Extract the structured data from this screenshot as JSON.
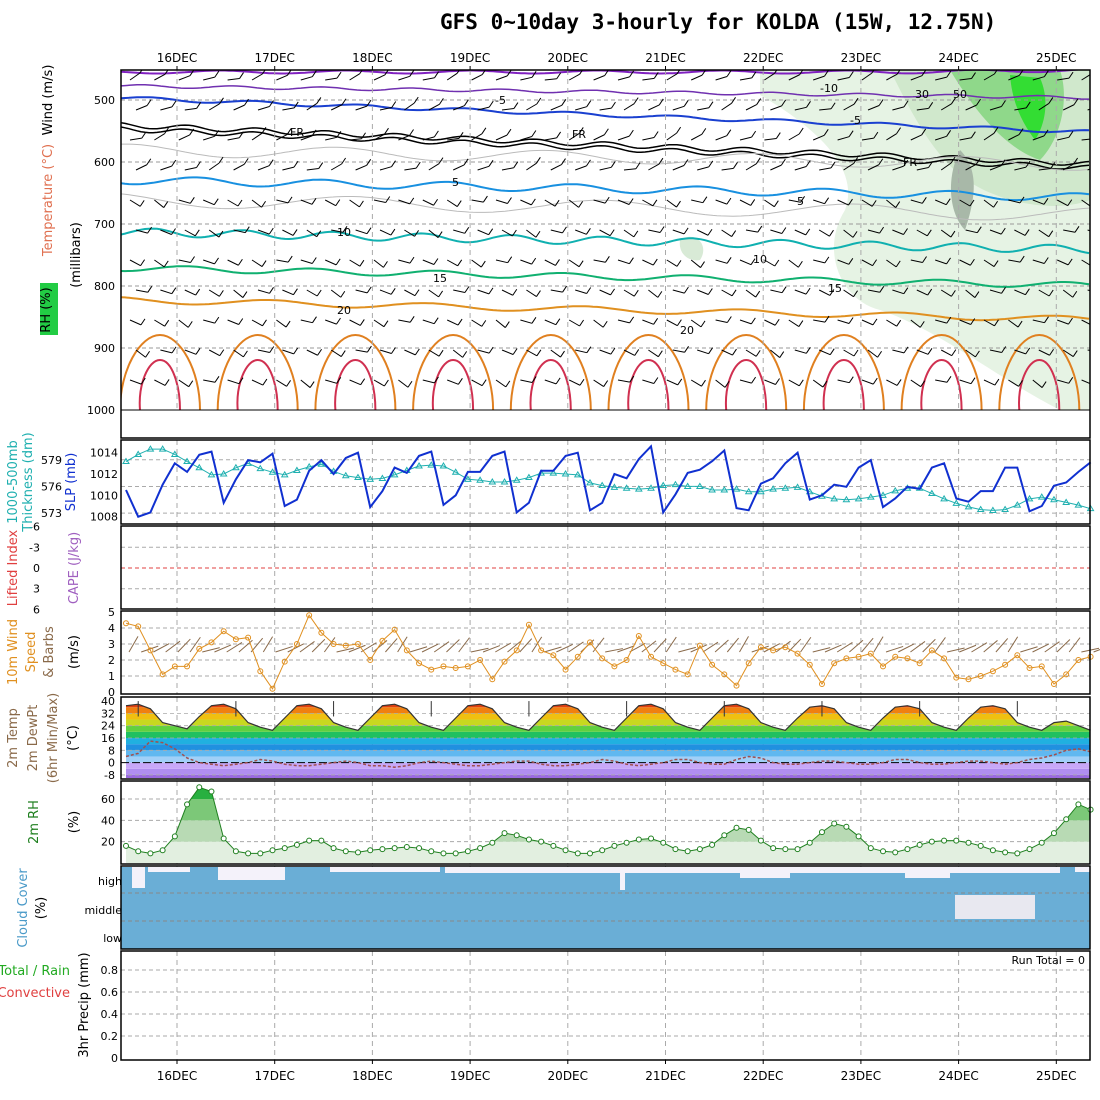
{
  "title": "GFS 0~10day 3-hourly for KOLDA (15W, 12.75N)",
  "dates": [
    "16DEC",
    "17DEC",
    "18DEC",
    "19DEC",
    "20DEC",
    "21DEC",
    "22DEC",
    "23DEC",
    "24DEC",
    "25DEC"
  ],
  "colors": {
    "frame": "#000000",
    "grid": "#aaaaaa",
    "slp": "#1030d0",
    "thickness": "#20b0b0",
    "wind10": "#e09020",
    "rh": "#208020",
    "cloud": "#6aaed6",
    "lifted": "#e04040",
    "temp_warm": "#d02010"
  },
  "panels": {
    "upper": {
      "ylabels": [
        "Wind (m/s)",
        "Temperature (°C)",
        "RH (%)",
        "(millibars)"
      ],
      "ticks": [
        "500",
        "600",
        "700",
        "800",
        "900",
        "1000"
      ],
      "contour_labels": {
        "purple": "-10",
        "blue": "-5",
        "fr": "FR",
        "lblue": "5",
        "teal": "10",
        "green": "15",
        "orange": "20",
        "rh30": "30",
        "rh50": "50"
      }
    },
    "slp": {
      "ylabels": [
        "1000-500mb",
        "Thickness (dm)",
        "SLP (mb)"
      ],
      "left_ticks": [
        "579",
        "576",
        "573"
      ],
      "right_ticks": [
        "1014",
        "1012",
        "1010",
        "1008"
      ]
    },
    "cape": {
      "ylabels": [
        "Lifted Index",
        "CAPE (J/kg)"
      ],
      "ticks": [
        "-6",
        "-3",
        "0",
        "3",
        "6"
      ]
    },
    "wind10": {
      "ylabels": [
        "10m Wind",
        "Speed",
        "& Barbs",
        "(m/s)"
      ],
      "ticks": [
        "5",
        "4",
        "3",
        "2",
        "1",
        "0"
      ]
    },
    "temp": {
      "ylabels": [
        "2m Temp",
        "2m DewPt",
        "(6hr Min/Max)",
        "(°C)"
      ],
      "ticks": [
        "40",
        "32",
        "24",
        "16",
        "8",
        "0",
        "-8"
      ]
    },
    "rh": {
      "ylabels": [
        "2m RH",
        "(%)"
      ],
      "ticks": [
        "60",
        "40",
        "20"
      ]
    },
    "cloud": {
      "ylabels": [
        "Cloud Cover",
        "(%)"
      ],
      "ticks": [
        "high",
        "middle",
        "low"
      ]
    },
    "precip": {
      "ylabels": [
        "Total / Rain",
        "Convective",
        "3hr Precip (mm)"
      ],
      "ticks": [
        "0.8",
        "0.6",
        "0.4",
        "0.2",
        "0"
      ],
      "run_total": "Run Total = 0"
    }
  },
  "chart_data": [
    {
      "panel": "SLP (mb)",
      "type": "line",
      "ylim": [
        1007.5,
        1015
      ],
      "values": [
        1010.5,
        1008.0,
        1008.4,
        1011.0,
        1013.0,
        1012.2,
        1013.8,
        1014.1,
        1009.3,
        1011.5,
        1013.3,
        1013.1,
        1013.9,
        1009.0,
        1009.6,
        1012.3,
        1013.3,
        1012.0,
        1013.5,
        1014.0,
        1008.9,
        1010.4,
        1012.6,
        1012.1,
        1013.7,
        1014.1,
        1009.1,
        1010.0,
        1012.2,
        1012.2,
        1013.7,
        1014.1,
        1008.4,
        1009.3,
        1012.3,
        1012.3,
        1013.7,
        1014.0,
        1008.6,
        1009.3,
        1012.0,
        1011.6,
        1013.4,
        1014.6,
        1008.4,
        1010.1,
        1012.1,
        1012.4,
        1013.2,
        1014.2,
        1008.8,
        1008.6,
        1011.1,
        1011.6,
        1013.0,
        1014.0,
        1009.6,
        1010.0,
        1011.0,
        1010.8,
        1012.6,
        1013.3,
        1008.9,
        1009.7,
        1010.8,
        1010.6,
        1012.6,
        1013.0,
        1009.7,
        1009.4,
        1010.4,
        1010.4,
        1012.6,
        1012.6,
        1008.5,
        1009.0,
        1010.9,
        1011.2,
        1012.2,
        1013.1
      ]
    },
    {
      "panel": "1000-500mb Thickness (dm)",
      "type": "line",
      "ylim": [
        572,
        581
      ],
      "values": [
        578.8,
        579.6,
        580.2,
        580.2,
        579.6,
        578.8,
        578.1,
        577.3,
        577.4,
        578.1,
        578.6,
        578.0,
        577.6,
        577.3,
        577.8,
        578.2,
        578.5,
        577.7,
        577.2,
        577.0,
        576.8,
        576.9,
        577.3,
        577.8,
        578.3,
        578.4,
        578.3,
        577.6,
        576.8,
        576.7,
        576.5,
        576.5,
        576.7,
        577.0,
        577.5,
        577.5,
        577.4,
        577.3,
        576.4,
        576.1,
        575.9,
        575.8,
        575.7,
        575.8,
        576.1,
        576.2,
        576.0,
        576.0,
        575.6,
        575.6,
        575.7,
        575.4,
        575.4,
        575.7,
        575.8,
        575.9,
        575.4,
        574.9,
        574.6,
        574.5,
        574.6,
        574.8,
        575.0,
        575.5,
        575.8,
        575.8,
        575.2,
        574.6,
        574.1,
        573.7,
        573.4,
        573.3,
        573.4,
        573.9,
        574.6,
        574.8,
        574.5,
        574.2,
        573.9,
        573.5
      ]
    },
    {
      "panel": "10m Wind Speed (m/s)",
      "type": "line",
      "ylim": [
        0,
        5
      ],
      "values": [
        4.3,
        4.1,
        2.6,
        1.1,
        1.6,
        1.6,
        2.7,
        3.1,
        3.8,
        3.3,
        3.4,
        1.3,
        0.2,
        1.9,
        3.0,
        4.8,
        3.7,
        3.0,
        2.9,
        3.0,
        2.0,
        3.2,
        3.9,
        2.6,
        1.8,
        1.4,
        1.6,
        1.5,
        1.6,
        2.0,
        0.8,
        1.9,
        2.6,
        4.2,
        2.6,
        2.3,
        1.4,
        2.2,
        3.1,
        2.1,
        1.6,
        2.0,
        3.5,
        2.2,
        1.8,
        1.4,
        1.1,
        2.9,
        1.7,
        1.1,
        0.4,
        1.8,
        2.8,
        2.6,
        2.8,
        2.4,
        1.7,
        0.5,
        1.8,
        2.1,
        2.2,
        2.4,
        1.6,
        2.2,
        2.1,
        1.8,
        2.6,
        2.1,
        0.9,
        0.8,
        1.0,
        1.3,
        1.7,
        2.3,
        1.5,
        1.6,
        0.5,
        1.1,
        2.0,
        2.2
      ]
    },
    {
      "panel": "2m Temp (°C)",
      "type": "area",
      "ylim": [
        -10,
        42
      ],
      "values": [
        37,
        38,
        35,
        26,
        24,
        22,
        30,
        37,
        38,
        35,
        26,
        23,
        21,
        29,
        37,
        38,
        35,
        26,
        23,
        21,
        29,
        37,
        38,
        35,
        26,
        23,
        21,
        29,
        37,
        38,
        35,
        26,
        23,
        21,
        29,
        37,
        38,
        35,
        26,
        23,
        21,
        29,
        37,
        38,
        35,
        26,
        23,
        21,
        29,
        37,
        38,
        35,
        26,
        23,
        21,
        29,
        36,
        37,
        35,
        26,
        23,
        21,
        29,
        36,
        37,
        35,
        26,
        23,
        21,
        29,
        36,
        37,
        35,
        26,
        23,
        21,
        26,
        27,
        24,
        21
      ]
    },
    {
      "panel": "2m DewPt (°C)",
      "type": "line",
      "ylim": [
        -10,
        42
      ],
      "values": [
        4,
        6,
        14,
        13,
        9,
        3,
        0,
        -1,
        -2,
        -1,
        0,
        2,
        1,
        -1,
        -2,
        -2,
        -1,
        0,
        1,
        0,
        -2,
        -2,
        -3,
        -2,
        0,
        1,
        0,
        -1,
        -2,
        -2,
        -1,
        0,
        1,
        1,
        -1,
        -2,
        -2,
        -1,
        0,
        2,
        1,
        -1,
        -2,
        -1,
        0,
        2,
        2,
        0,
        -1,
        -1,
        2,
        4,
        3,
        0,
        -1,
        -1,
        0,
        1,
        1,
        0,
        -1,
        -1,
        0,
        2,
        2,
        0,
        -1,
        -1,
        0,
        1,
        1,
        0,
        -1,
        0,
        2,
        3,
        5,
        8,
        9,
        7
      ]
    },
    {
      "panel": "2m RH (%)",
      "type": "area",
      "ylim": [
        0,
        75
      ],
      "values": [
        16,
        11,
        9,
        12,
        25,
        55,
        71,
        67,
        23,
        11,
        9,
        9,
        12,
        14,
        17,
        21,
        21,
        14,
        11,
        10,
        12,
        13,
        14,
        15,
        14,
        11,
        9,
        9,
        11,
        14,
        19,
        28,
        26,
        22,
        20,
        16,
        12,
        9,
        9,
        12,
        16,
        19,
        22,
        23,
        19,
        13,
        11,
        13,
        17,
        26,
        33,
        31,
        21,
        14,
        13,
        13,
        19,
        29,
        37,
        34,
        25,
        14,
        11,
        10,
        13,
        17,
        20,
        21,
        21,
        19,
        16,
        12,
        10,
        9,
        13,
        19,
        28,
        41,
        55,
        50
      ]
    },
    {
      "panel": "3hr Precip (mm)",
      "type": "bar",
      "ylim": [
        0,
        1
      ],
      "values": []
    }
  ]
}
